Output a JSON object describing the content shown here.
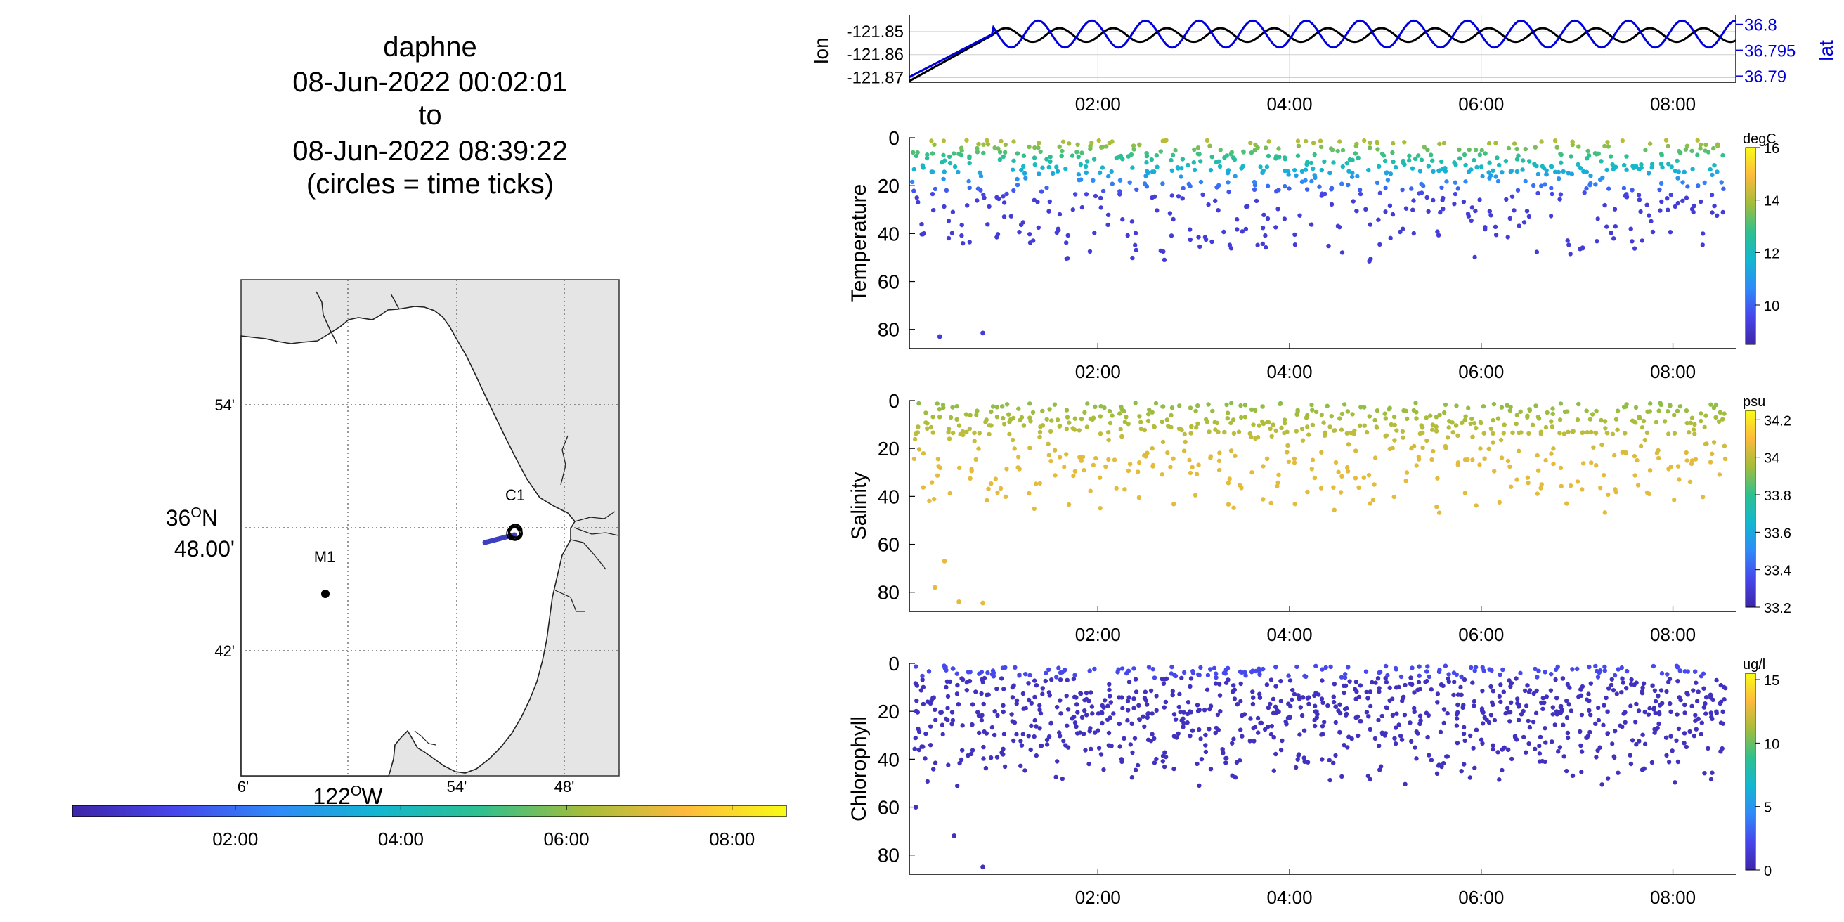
{
  "header": {
    "vehicle": "daphne",
    "start": "08-Jun-2022 00:02:01",
    "to": "to",
    "end": "08-Jun-2022 08:39:22",
    "note": "(circles = time ticks)"
  },
  "colors": {
    "black": "#000000",
    "blue": "#0000dd",
    "grid": "#b0b0b0",
    "land": "#e5e5e5",
    "track": "#3b3fc0",
    "parula_stops": [
      "#3e26a8",
      "#4746eb",
      "#2f8af8",
      "#13b7d0",
      "#2ec08f",
      "#a3bd3b",
      "#fcba3d",
      "#f9fb15"
    ]
  },
  "chart_data": [
    {
      "id": "map",
      "type": "map",
      "lat_labels": [
        "54'",
        "36ºN 48.00'",
        "42'"
      ],
      "lon_labels": [
        "6'",
        "122ºW",
        "54'",
        "48'"
      ],
      "lat_label_main_top": "36",
      "lat_label_main_sup": "O",
      "lat_label_main_rest": "N",
      "lat_label_main_bottom": "48.00'",
      "lon_label_main": "122",
      "lon_label_main_sup": "O",
      "lon_label_main_rest": "W",
      "stations": [
        {
          "name": "C1"
        },
        {
          "name": "M1"
        }
      ]
    },
    {
      "id": "time_colorbar",
      "type": "colorbar",
      "tick_labels": [
        "02:00",
        "04:00",
        "06:00",
        "08:00"
      ]
    },
    {
      "id": "position",
      "type": "line",
      "x_range_hours": [
        0.033,
        8.656
      ],
      "x_tick_labels": [
        "02:00",
        "04:00",
        "06:00",
        "08:00"
      ],
      "x_tick_hours": [
        2,
        4,
        6,
        8
      ],
      "left": {
        "label": "lon",
        "ticks": [
          "-121.85",
          "-121.86",
          "-121.87"
        ],
        "tick_values": [
          -121.85,
          -121.86,
          -121.87
        ],
        "ylim": [
          -121.872,
          -121.843
        ]
      },
      "right": {
        "label": "lat",
        "ticks": [
          "36.8",
          "36.795",
          "36.79"
        ],
        "tick_values": [
          36.8,
          36.795,
          36.79
        ],
        "ylim": [
          36.7888,
          36.8017
        ]
      },
      "series": [
        {
          "axis": "left",
          "color": "#000000",
          "period_h": 0.56,
          "low": -121.8545,
          "high": -121.8485,
          "start": -121.8715
        },
        {
          "axis": "right",
          "color": "#0000dd",
          "period_h": 0.56,
          "low": 36.7955,
          "high": 36.8007,
          "start": 36.7898
        }
      ]
    },
    {
      "id": "temperature",
      "type": "scatter",
      "ylabel": "Temperature",
      "unit": "degC",
      "y_ticks": [
        "0",
        "20",
        "40",
        "60",
        "80"
      ],
      "y_tick_values": [
        0,
        20,
        40,
        60,
        80
      ],
      "ylim": [
        0,
        88
      ],
      "x_tick_labels": [
        "02:00",
        "04:00",
        "06:00",
        "08:00"
      ],
      "clim": [
        8.5,
        16
      ],
      "cbar_ticks": [
        "16",
        "14",
        "12",
        "10"
      ],
      "cbar_tick_values": [
        16,
        14,
        12,
        10
      ],
      "outliers": [
        [
          0.35,
          83
        ],
        [
          0.8,
          81.5
        ]
      ]
    },
    {
      "id": "salinity",
      "type": "scatter",
      "ylabel": "Salinity",
      "unit": "psu",
      "y_ticks": [
        "0",
        "20",
        "40",
        "60",
        "80"
      ],
      "y_tick_values": [
        0,
        20,
        40,
        60,
        80
      ],
      "ylim": [
        0,
        88
      ],
      "x_tick_labels": [
        "02:00",
        "04:00",
        "06:00",
        "08:00"
      ],
      "clim": [
        33.2,
        34.25
      ],
      "cbar_ticks": [
        "34.2",
        "34",
        "33.8",
        "33.6",
        "33.4",
        "33.2"
      ],
      "cbar_tick_values": [
        34.2,
        34.0,
        33.8,
        33.6,
        33.4,
        33.2
      ],
      "outliers": [
        [
          0.4,
          67
        ],
        [
          0.3,
          78
        ],
        [
          0.55,
          84
        ],
        [
          0.8,
          84.5
        ]
      ]
    },
    {
      "id": "chlorophyll",
      "type": "scatter",
      "ylabel": "Chlorophyll",
      "unit": "ug/l",
      "y_ticks": [
        "0",
        "20",
        "40",
        "60",
        "80"
      ],
      "y_tick_values": [
        0,
        20,
        40,
        60,
        80
      ],
      "ylim": [
        0,
        88
      ],
      "x_tick_labels": [
        "02:00",
        "04:00",
        "06:00",
        "08:00"
      ],
      "clim": [
        0,
        15.5
      ],
      "cbar_ticks": [
        "15",
        "10",
        "5",
        "0"
      ],
      "cbar_tick_values": [
        15,
        10,
        5,
        0
      ],
      "outliers": [
        [
          0.5,
          72
        ],
        [
          0.8,
          85
        ],
        [
          0.1,
          60
        ]
      ]
    }
  ]
}
